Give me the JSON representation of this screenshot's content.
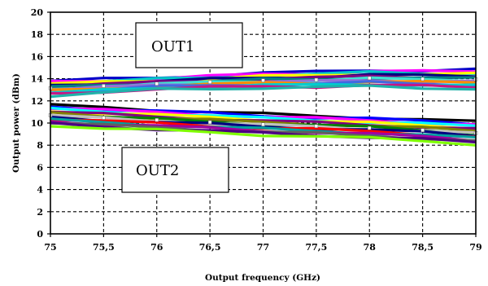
{
  "chart_data": {
    "type": "line",
    "title": "",
    "xlabel": "Output frequency (GHz)",
    "ylabel": "Output power (dBm)",
    "x_tick_labels": [
      "75",
      "75,5",
      "76",
      "76,5",
      "77",
      "77,5",
      "78",
      "78,5",
      "79"
    ],
    "y_tick_labels": [
      "0",
      "2",
      "4",
      "6",
      "8",
      "10",
      "12",
      "14",
      "16",
      "18",
      "20"
    ],
    "xlim": [
      75,
      79
    ],
    "ylim": [
      0,
      20
    ],
    "grid": true,
    "grid_style": "dashed",
    "x": [
      75,
      75.5,
      76,
      76.5,
      77,
      77.5,
      78,
      78.5,
      79
    ],
    "annotations": [
      {
        "text": "OUT1",
        "x": 76.1,
        "y": 15.7
      },
      {
        "text": "OUT2",
        "x": 75.8,
        "y": 6.5
      }
    ],
    "series_groups": [
      {
        "label": "OUT1",
        "palette": [
          "#0000c8",
          "#ff00ff",
          "#00c8c8",
          "#ffff00",
          "#000080",
          "#800080",
          "#008080",
          "#40e0d0",
          "#9370db",
          "#ff8c00",
          "#4169e1",
          "#00ced1",
          "#c71585",
          "#20b2aa"
        ],
        "upper": [
          13.8,
          13.95,
          14.1,
          14.3,
          14.5,
          14.6,
          14.8,
          14.75,
          14.8
        ],
        "lower": [
          12.5,
          12.75,
          13.0,
          13.1,
          13.2,
          13.2,
          13.3,
          13.2,
          13.1
        ]
      },
      {
        "label": "OUT2",
        "palette": [
          "#000000",
          "#0000ff",
          "#ff00ff",
          "#00ffff",
          "#ffff00",
          "#800080",
          "#808000",
          "#008000",
          "#c0c0c0",
          "#000080",
          "#ff0000",
          "#00a0a0",
          "#a000a0",
          "#606060",
          "#4b0082",
          "#7fff00"
        ],
        "upper": [
          11.6,
          11.4,
          11.2,
          11.0,
          10.8,
          10.65,
          10.5,
          10.3,
          10.1
        ],
        "lower": [
          9.8,
          9.55,
          9.35,
          9.15,
          8.95,
          8.8,
          8.6,
          8.4,
          8.1
        ]
      }
    ]
  }
}
